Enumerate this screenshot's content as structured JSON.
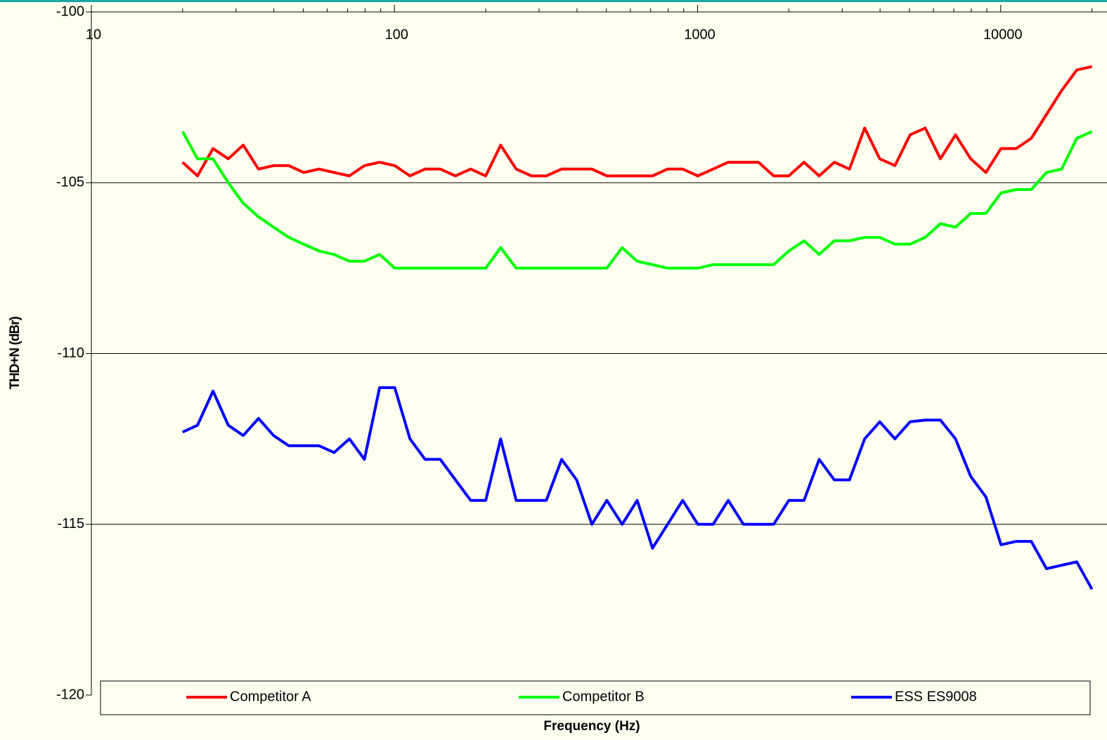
{
  "chart_data": {
    "type": "line",
    "x_label": "Frequency (Hz)",
    "y_label": "THD+N (dBr)",
    "xscale": "log",
    "xlim": [
      10,
      21600
    ],
    "xticks": [
      10,
      100,
      1000,
      10000
    ],
    "ylim": [
      -120,
      -100
    ],
    "yticks": [
      -120,
      -115,
      -110,
      -105,
      -100
    ],
    "grid": true,
    "legend": "bottom",
    "x": [
      20,
      22.4,
      25.2,
      28.3,
      31.7,
      35.6,
      39.9,
      44.8,
      50.2,
      56.4,
      63.2,
      71.0,
      79.6,
      89.3,
      100.2,
      112.5,
      126.2,
      141.6,
      158.9,
      178.3,
      200,
      224,
      252,
      283,
      317,
      356,
      399,
      448,
      502,
      564,
      632,
      710,
      796,
      893,
      1002,
      1125,
      1262,
      1416,
      1589,
      1783,
      2000,
      2244,
      2518,
      2825,
      3170,
      3557,
      3991,
      4477,
      5024,
      5637,
      6325,
      7096,
      7962,
      8934,
      10024,
      11247,
      12619,
      14159,
      15887,
      17825,
      20000
    ],
    "series": [
      {
        "name": "Competitor A",
        "color": "#ff0000",
        "values": [
          -104.4,
          -104.8,
          -104.0,
          -104.3,
          -103.9,
          -104.6,
          -104.5,
          -104.5,
          -104.7,
          -104.6,
          -104.7,
          -104.8,
          -104.5,
          -104.4,
          -104.5,
          -104.8,
          -104.6,
          -104.6,
          -104.8,
          -104.6,
          -104.8,
          -103.9,
          -104.6,
          -104.8,
          -104.8,
          -104.6,
          -104.6,
          -104.6,
          -104.8,
          -104.8,
          -104.8,
          -104.8,
          -104.6,
          -104.6,
          -104.8,
          -104.6,
          -104.4,
          -104.4,
          -104.4,
          -104.8,
          -104.8,
          -104.4,
          -104.8,
          -104.4,
          -104.6,
          -103.4,
          -104.3,
          -104.5,
          -103.6,
          -103.4,
          -104.3,
          -103.6,
          -104.3,
          -104.7,
          -104.0,
          -104.0,
          -103.7,
          -103.0,
          -102.3,
          -101.7,
          -101.6
        ]
      },
      {
        "name": "Competitor B",
        "color": "#00ff00",
        "values": [
          -103.5,
          -104.3,
          -104.3,
          -105.0,
          -105.6,
          -106.0,
          -106.3,
          -106.6,
          -106.8,
          -107.0,
          -107.1,
          -107.3,
          -107.3,
          -107.1,
          -107.5,
          -107.5,
          -107.5,
          -107.5,
          -107.5,
          -107.5,
          -107.5,
          -106.9,
          -107.5,
          -107.5,
          -107.5,
          -107.5,
          -107.5,
          -107.5,
          -107.5,
          -106.9,
          -107.3,
          -107.4,
          -107.5,
          -107.5,
          -107.5,
          -107.4,
          -107.4,
          -107.4,
          -107.4,
          -107.4,
          -107.0,
          -106.7,
          -107.1,
          -106.7,
          -106.7,
          -106.6,
          -106.6,
          -106.8,
          -106.8,
          -106.6,
          -106.2,
          -106.3,
          -105.9,
          -105.9,
          -105.3,
          -105.2,
          -105.2,
          -104.7,
          -104.6,
          -103.7,
          -103.5
        ]
      },
      {
        "name": "ESS ES9008",
        "color": "#0000ff",
        "values": [
          -112.3,
          -112.1,
          -111.1,
          -112.1,
          -112.4,
          -111.9,
          -112.4,
          -112.7,
          -112.7,
          -112.7,
          -112.9,
          -112.5,
          -113.1,
          -111.0,
          -111.0,
          -112.5,
          -113.1,
          -113.1,
          -113.7,
          -114.3,
          -114.3,
          -112.5,
          -114.3,
          -114.3,
          -114.3,
          -113.1,
          -113.7,
          -115.0,
          -114.3,
          -115.0,
          -114.3,
          -115.7,
          -115.0,
          -114.3,
          -115.0,
          -115.0,
          -114.3,
          -115.0,
          -115.0,
          -115.0,
          -114.3,
          -114.3,
          -113.1,
          -113.7,
          -113.7,
          -112.5,
          -112.0,
          -112.5,
          -112.0,
          -111.95,
          -111.95,
          -112.5,
          -113.6,
          -114.2,
          -115.6,
          -115.5,
          -115.5,
          -116.3,
          -116.2,
          -116.1,
          -116.9
        ]
      }
    ]
  }
}
